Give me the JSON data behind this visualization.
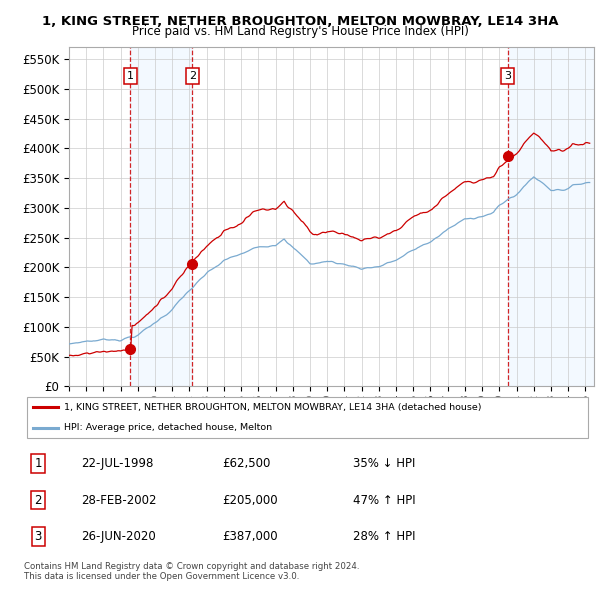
{
  "title": "1, KING STREET, NETHER BROUGHTON, MELTON MOWBRAY, LE14 3HA",
  "subtitle": "Price paid vs. HM Land Registry's House Price Index (HPI)",
  "sales": [
    {
      "label": "1",
      "date_num": 1998.554,
      "price": 62500
    },
    {
      "label": "2",
      "date_num": 2002.163,
      "price": 205000
    },
    {
      "label": "3",
      "date_num": 2020.496,
      "price": 387000
    }
  ],
  "legend_property": "1, KING STREET, NETHER BROUGHTON, MELTON MOWBRAY, LE14 3HA (detached house)",
  "legend_hpi": "HPI: Average price, detached house, Melton",
  "footer1": "Contains HM Land Registry data © Crown copyright and database right 2024.",
  "footer2": "This data is licensed under the Open Government Licence v3.0.",
  "table_rows": [
    {
      "num": "1",
      "date": "22-JUL-1998",
      "price": "£62,500",
      "pct": "35% ↓ HPI"
    },
    {
      "num": "2",
      "date": "28-FEB-2002",
      "price": "£205,000",
      "pct": "47% ↑ HPI"
    },
    {
      "num": "3",
      "date": "26-JUN-2020",
      "price": "£387,000",
      "pct": "28% ↑ HPI"
    }
  ],
  "property_color": "#cc0000",
  "hpi_color": "#7aaad0",
  "vline_color": "#cc0000",
  "shade_color": "#ddeeff",
  "ylim": [
    0,
    570000
  ],
  "xlim_start": 1995.0,
  "xlim_end": 2025.5,
  "yticks": [
    0,
    50000,
    100000,
    150000,
    200000,
    250000,
    300000,
    350000,
    400000,
    450000,
    500000,
    550000
  ],
  "background_color": "#ffffff",
  "grid_color": "#cccccc"
}
